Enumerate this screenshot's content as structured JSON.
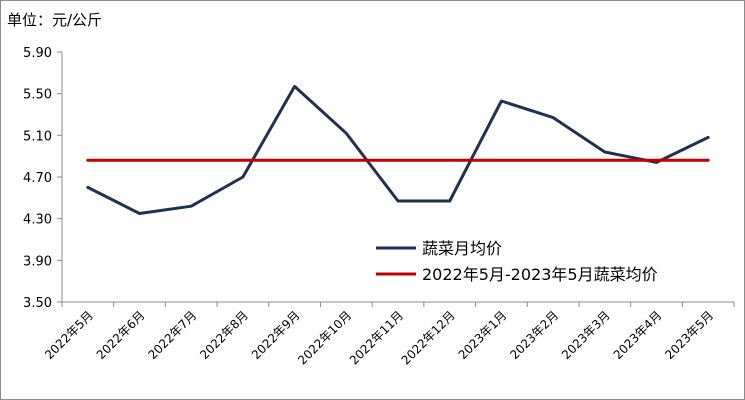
{
  "unit_label": "单位：元/公斤",
  "chart_data": {
    "type": "line",
    "categories": [
      "2022年5月",
      "2022年6月",
      "2022年7月",
      "2022年8月",
      "2022年9月",
      "2022年10月",
      "2022年11月",
      "2022年12月",
      "2023年1月",
      "2023年2月",
      "2023年3月",
      "2023年4月",
      "2023年5月"
    ],
    "series": [
      {
        "name": "蔬菜月均价",
        "color": "#1f3251",
        "values": [
          4.6,
          4.35,
          4.42,
          4.7,
          5.57,
          5.12,
          4.47,
          4.47,
          5.43,
          5.27,
          4.94,
          4.84,
          5.08
        ]
      },
      {
        "name": "2022年5月-2023年5月蔬菜均价",
        "color": "#c00000",
        "values": [
          4.86,
          4.86,
          4.86,
          4.86,
          4.86,
          4.86,
          4.86,
          4.86,
          4.86,
          4.86,
          4.86,
          4.86,
          4.86
        ]
      }
    ],
    "yticks": [
      "5.90",
      "5.50",
      "5.10",
      "4.70",
      "4.30",
      "3.90",
      "3.50"
    ],
    "ylim": [
      3.5,
      5.9
    ],
    "grid": false,
    "legend_position": "inside-bottom-right"
  }
}
